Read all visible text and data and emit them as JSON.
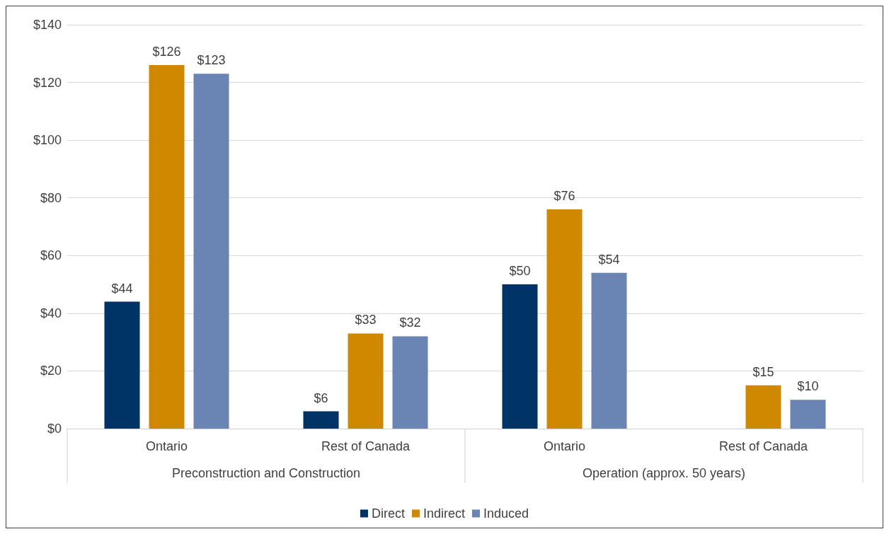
{
  "chart_data": {
    "type": "bar",
    "categories": [
      "Ontario",
      "Rest of Canada",
      "Ontario",
      "Rest of Canada"
    ],
    "annotations": [
      "Preconstruction and Construction",
      "Operation (approx. 50 years)"
    ],
    "series": [
      {
        "name": "Direct",
        "color": "#003366",
        "values": [
          44,
          6,
          50,
          null
        ],
        "value_labels": [
          "$44",
          "$6",
          "$50",
          null
        ]
      },
      {
        "name": "Indirect",
        "color": "#d08800",
        "values": [
          126,
          33,
          76,
          15
        ],
        "value_labels": [
          "$126",
          "$33",
          "$76",
          "$15"
        ]
      },
      {
        "name": "Induced",
        "color": "#6a84b4",
        "values": [
          123,
          32,
          54,
          10
        ],
        "value_labels": [
          "$123",
          "$32",
          "$54",
          "$10"
        ]
      }
    ],
    "ylim": [
      0,
      140
    ],
    "yticks": [
      {
        "value": 0,
        "label": "$0"
      },
      {
        "value": 20,
        "label": "$20"
      },
      {
        "value": 40,
        "label": "$40"
      },
      {
        "value": 60,
        "label": "$60"
      },
      {
        "value": 80,
        "label": "$80"
      },
      {
        "value": 100,
        "label": "$100"
      },
      {
        "value": 120,
        "label": "$120"
      },
      {
        "value": 140,
        "label": "$140"
      }
    ],
    "grid": "y",
    "legend": "bottom"
  }
}
